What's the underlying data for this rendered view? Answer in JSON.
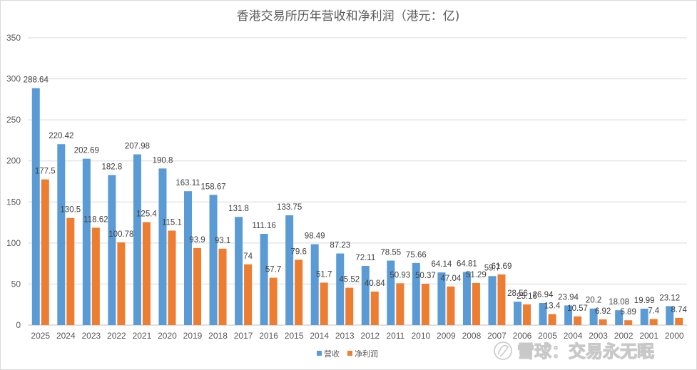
{
  "chart_data": {
    "type": "bar",
    "title": "香港交易所历年营收和净利润（港元：亿)",
    "categories": [
      "2025",
      "2024",
      "2023",
      "2022",
      "2021",
      "2020",
      "2019",
      "2018",
      "2017",
      "2016",
      "2015",
      "2014",
      "2013",
      "2012",
      "2011",
      "2010",
      "2009",
      "2008",
      "2007",
      "2006",
      "2005",
      "2004",
      "2003",
      "2002",
      "2001",
      "2000"
    ],
    "series": [
      {
        "name": "营收",
        "color": "#5b9bd5",
        "values": [
          288.64,
          220.42,
          202.69,
          182.8,
          207.98,
          190.8,
          163.11,
          158.67,
          131.8,
          111.16,
          133.75,
          98.49,
          87.23,
          72.11,
          78.55,
          75.66,
          64.14,
          64.81,
          59.7,
          28.56,
          26.94,
          23.94,
          20.2,
          18.08,
          19.99,
          23.12
        ],
        "labels": [
          "288.64",
          "220.42",
          "202.69",
          "182.8",
          "207.98",
          "190.8",
          "163.11",
          "158.67",
          "131.8",
          "111.16",
          "133.75",
          "98.49",
          "87.23",
          "72.11",
          "78.55",
          "75.66",
          "64.14",
          "64.81",
          "59.7",
          "28.56",
          "26.94",
          "23.94",
          "20.2",
          "18.08",
          "19.99",
          "23.12"
        ]
      },
      {
        "name": "净利润",
        "color": "#ed7d31",
        "values": [
          177.5,
          130.5,
          118.62,
          100.78,
          125.4,
          115.1,
          93.9,
          93.1,
          74,
          57.7,
          79.6,
          51.7,
          45.52,
          40.84,
          50.93,
          50.37,
          47.04,
          51.29,
          61.69,
          25.16,
          13.4,
          10.57,
          6.92,
          5.89,
          7.4,
          8.74
        ],
        "labels": [
          "177.5",
          "130.5",
          "118.62",
          "100.78",
          "125.4",
          "115.1",
          "93.9",
          "93.1",
          "74",
          "57.7",
          "79.6",
          "51.7",
          "45.52",
          "40.84",
          "50.93",
          "50.37",
          "47.04",
          "51.29",
          "61.69",
          "25.16",
          "13.4",
          "10.57",
          "6.92",
          "5.89",
          "7.4",
          "8.74"
        ]
      }
    ],
    "ylim": [
      0,
      350
    ],
    "yticks": [
      "0",
      "50",
      "100",
      "150",
      "200",
      "250",
      "300",
      "350"
    ],
    "grid": true,
    "legend": "bottom-center",
    "xlabel": "",
    "ylabel": ""
  },
  "watermark": {
    "text": "雪球：交易永无眠"
  }
}
